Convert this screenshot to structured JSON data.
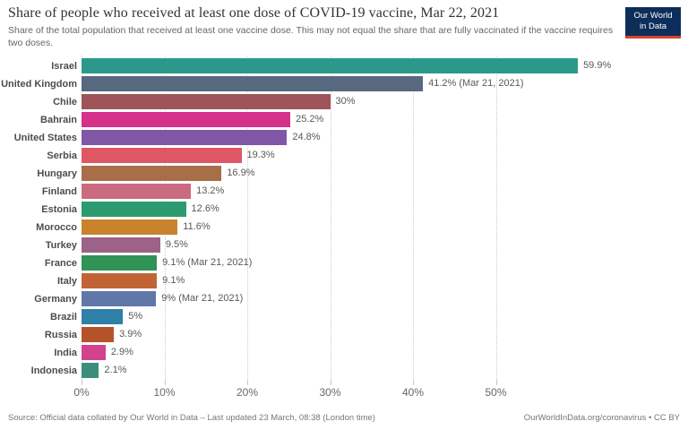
{
  "header": {
    "title": "Share of people who received at least one dose of COVID-19 vaccine, Mar 22, 2021",
    "subtitle": "Share of the total population that received at least one vaccine dose. This may not equal the share that are fully vaccinated if the vaccine requires two doses.",
    "logo": {
      "line1": "Our World",
      "line2": "in Data",
      "bg_color": "#0d2e5a",
      "accent_color": "#d8432e"
    }
  },
  "chart_data": {
    "type": "bar",
    "orientation": "horizontal",
    "title": "Share of people who received at least one dose of COVID-19 vaccine, Mar 22, 2021",
    "xlabel": "",
    "ylabel": "",
    "xlim": [
      0,
      72
    ],
    "grid": "dotted-vertical",
    "legend": "none",
    "x_tick_values": [
      0,
      10,
      20,
      30,
      40,
      50
    ],
    "x_tick_labels": [
      "0%",
      "10%",
      "20%",
      "30%",
      "40%",
      "50%"
    ],
    "categories": [
      "Israel",
      "United Kingdom",
      "Chile",
      "Bahrain",
      "United States",
      "Serbia",
      "Hungary",
      "Finland",
      "Estonia",
      "Morocco",
      "Turkey",
      "France",
      "Italy",
      "Germany",
      "Brazil",
      "Russia",
      "India",
      "Indonesia"
    ],
    "values": [
      59.9,
      41.2,
      30,
      25.2,
      24.8,
      19.3,
      16.9,
      13.2,
      12.6,
      11.6,
      9.5,
      9.1,
      9.1,
      9,
      5,
      3.9,
      2.9,
      2.1
    ],
    "value_labels": [
      "59.9%",
      "41.2% (Mar 21, 2021)",
      "30%",
      "25.2%",
      "24.8%",
      "19.3%",
      "16.9%",
      "13.2%",
      "12.6%",
      "11.6%",
      "9.5%",
      "9.1% (Mar 21, 2021)",
      "9.1%",
      "9% (Mar 21, 2021)",
      "5%",
      "3.9%",
      "2.9%",
      "2.1%"
    ],
    "bar_colors": [
      "#2a998c",
      "#57687f",
      "#9e5459",
      "#d5308a",
      "#7f57a6",
      "#dd5864",
      "#a86e48",
      "#ca6b80",
      "#2c9b6f",
      "#c9832e",
      "#9d6287",
      "#2f9455",
      "#c26337",
      "#6078a9",
      "#2f80a6",
      "#b4532a",
      "#d2428e",
      "#3b8e7c"
    ]
  },
  "footer": {
    "source": "Source: Official data collated by Our World in Data – Last updated 23 March, 08:38 (London time)",
    "link": "OurWorldInData.org/coronavirus • CC BY"
  }
}
